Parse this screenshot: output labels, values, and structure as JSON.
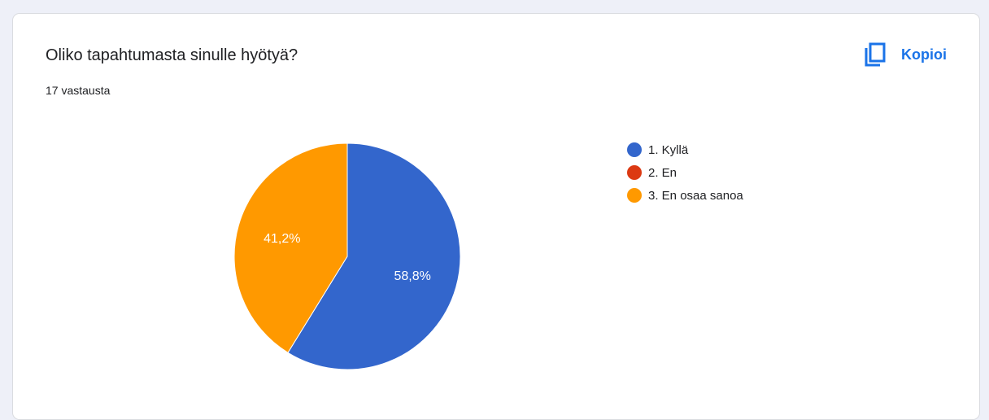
{
  "card": {
    "title": "Oliko tapahtumasta sinulle hyötyä?",
    "response_count": "17 vastausta",
    "copy_label": "Kopioi"
  },
  "icons": {
    "copy": "copy-icon"
  },
  "colors": {
    "accent": "#1a73e8",
    "background": "#eef0f8"
  },
  "chart_data": {
    "type": "pie",
    "categories": [
      "1. Kyllä",
      "2. En",
      "3. En osaa sanoa"
    ],
    "values": [
      58.8,
      0,
      41.2
    ],
    "labels": [
      "58,8%",
      "",
      "41,2%"
    ],
    "colors": [
      "#3366cc",
      "#dc3912",
      "#ff9900"
    ],
    "start_angle_deg": 90,
    "direction": "clockwise",
    "legend": "right",
    "title": "",
    "xlabel": "",
    "ylabel": ""
  }
}
